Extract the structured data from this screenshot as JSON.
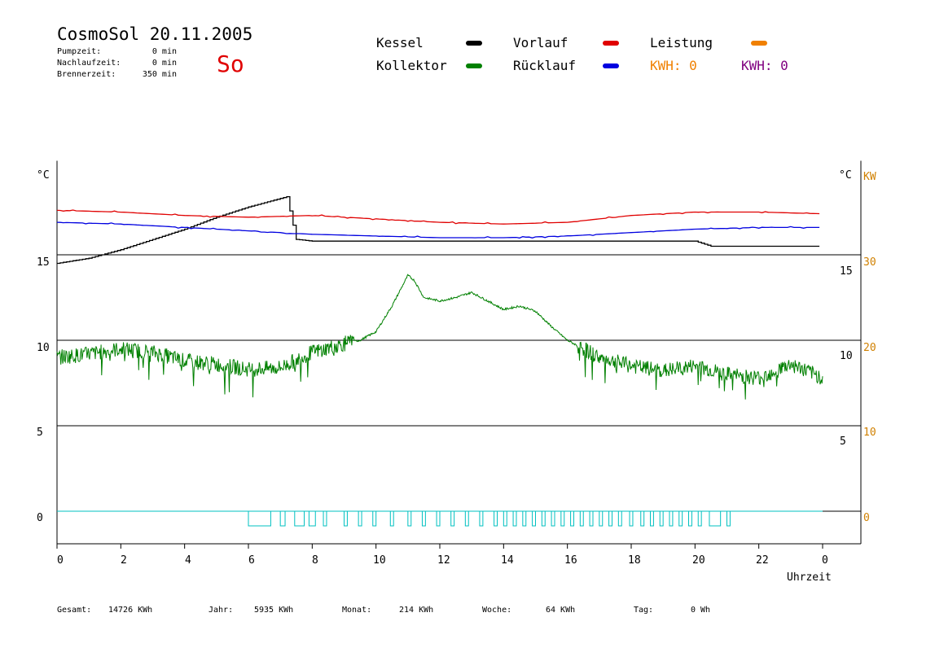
{
  "header": {
    "title": "CosmoSol 20.11.2005",
    "day": "So",
    "stats": [
      {
        "label": "Pumpzeit:",
        "value": "0 min"
      },
      {
        "label": "Nachlaufzeit:",
        "value": "0 min"
      },
      {
        "label": "Brennerzeit:",
        "value": "350 min"
      }
    ]
  },
  "legend": {
    "kessel": "Kessel",
    "kollektor": "Kollektor",
    "vorlauf": "Vorlauf",
    "ruecklauf": "Rücklauf",
    "leistung": "Leistung",
    "kwh1": "KWH: 0",
    "kwh2": "KWH: 0"
  },
  "colors": {
    "kessel": "#000000",
    "kollektor": "#008000",
    "vorlauf": "#e00000",
    "ruecklauf": "#0000e0",
    "leistung": "#f08000",
    "kwh2": "#800080",
    "pump": "#00c0c0",
    "axis_right_kw": "#d08000"
  },
  "axes": {
    "left_unit": "°C",
    "right_unit": "°C",
    "right_unit2": "KW",
    "xlabel": "Uhrzeit",
    "x_ticks": [
      "0",
      "2",
      "4",
      "6",
      "8",
      "10",
      "12",
      "14",
      "16",
      "18",
      "20",
      "22",
      "0"
    ],
    "left_ticks": [
      "15",
      "10",
      "5",
      "0"
    ],
    "right_ticks": [
      "15",
      "10",
      "5"
    ],
    "kw_ticks": [
      "30",
      "20",
      "10",
      "0"
    ]
  },
  "footer": [
    {
      "label": "Gesamt:",
      "value": "14726 KWh"
    },
    {
      "label": "Jahr:",
      "value": "5935 KWh"
    },
    {
      "label": "Monat:",
      "value": "214 KWh"
    },
    {
      "label": "Woche:",
      "value": "64 KWh"
    },
    {
      "label": "Tag:",
      "value": "0 Wh"
    }
  ],
  "chart_data": {
    "type": "line",
    "xlabel": "Uhrzeit",
    "ylabel": "°C",
    "xlim": [
      0,
      24
    ],
    "ylim": [
      -1.5,
      20.5
    ],
    "series": [
      {
        "name": "Kessel",
        "x": [
          0,
          1,
          2,
          3,
          4,
          5,
          6,
          7,
          7.2,
          7.5,
          8,
          10,
          12,
          14,
          16,
          18,
          20,
          20.5,
          24
        ],
        "values": [
          14.5,
          14.8,
          15.3,
          15.9,
          16.5,
          17.2,
          17.8,
          18.3,
          18.4,
          15.9,
          15.8,
          15.8,
          15.8,
          15.8,
          15.8,
          15.8,
          15.8,
          15.5,
          15.5
        ]
      },
      {
        "name": "Vorlauf",
        "x": [
          0,
          2,
          4,
          6,
          8,
          10,
          12,
          14,
          16,
          18,
          20,
          22,
          24
        ],
        "values": [
          17.6,
          17.5,
          17.3,
          17.2,
          17.3,
          17.1,
          16.9,
          16.8,
          16.9,
          17.3,
          17.5,
          17.5,
          17.4
        ]
      },
      {
        "name": "Rücklauf",
        "x": [
          0,
          2,
          4,
          6,
          8,
          10,
          12,
          14,
          16,
          18,
          20,
          22,
          24
        ],
        "values": [
          16.9,
          16.8,
          16.6,
          16.4,
          16.2,
          16.1,
          16.0,
          16.0,
          16.1,
          16.3,
          16.5,
          16.6,
          16.6
        ]
      },
      {
        "name": "Kollektor",
        "x": [
          0,
          1,
          2,
          3,
          4,
          5,
          6,
          7,
          8,
          9,
          9.5,
          10,
          10.5,
          11,
          11.2,
          11.5,
          12,
          12.5,
          13,
          13.5,
          14,
          14.5,
          15,
          15.5,
          16,
          17,
          18,
          19,
          20,
          21,
          22,
          23,
          24
        ],
        "values": [
          9.0,
          9.2,
          9.5,
          9.3,
          8.8,
          8.6,
          8.3,
          8.4,
          9.3,
          9.8,
          10.0,
          10.5,
          12.0,
          13.8,
          13.5,
          12.5,
          12.3,
          12.5,
          12.8,
          12.3,
          11.8,
          12.0,
          11.7,
          10.8,
          10.0,
          9.0,
          8.5,
          8.2,
          8.5,
          8.0,
          7.8,
          8.6,
          7.8
        ]
      },
      {
        "name": "Leistung",
        "x": [
          0,
          24
        ],
        "values": [
          0,
          0
        ]
      }
    ]
  }
}
